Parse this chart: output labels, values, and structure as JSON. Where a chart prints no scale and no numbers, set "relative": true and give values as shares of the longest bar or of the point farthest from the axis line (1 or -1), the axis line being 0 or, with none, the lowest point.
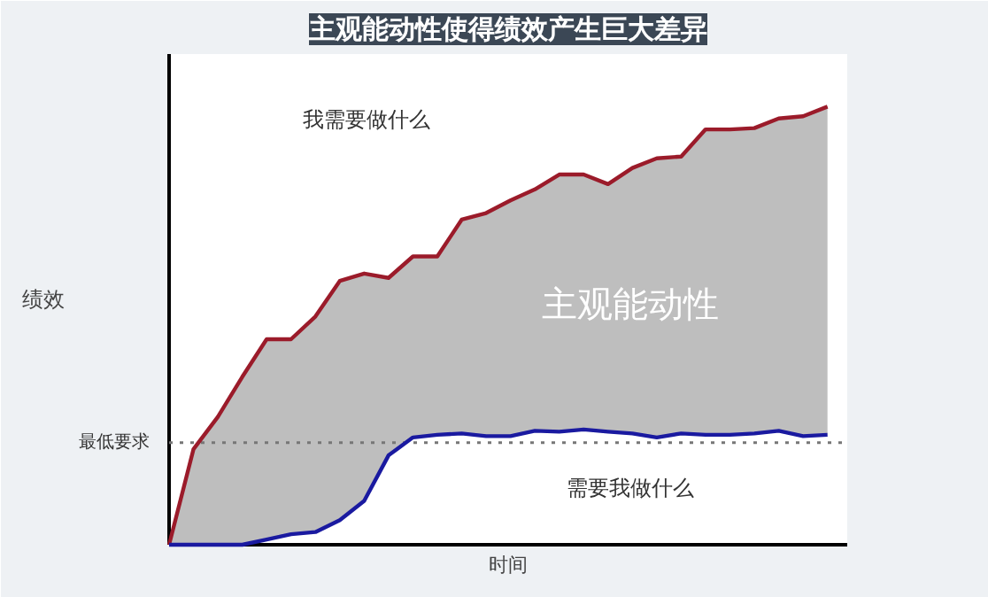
{
  "chart_data": {
    "type": "line",
    "title": "主观能动性使得绩效产生巨大差异",
    "xlabel": "时间",
    "ylabel": "绩效",
    "relative": true,
    "categories": [
      null,
      null,
      null,
      null,
      null,
      null,
      null,
      null,
      null,
      null,
      null,
      null,
      null,
      null,
      null,
      null,
      null,
      null,
      null,
      null,
      null,
      null,
      null,
      null,
      null,
      null,
      null,
      null
    ],
    "series": [
      {
        "color": "#9b1b2a",
        "values": [
          0,
          0.218,
          0.292,
          0.383,
          0.469,
          0.469,
          0.521,
          0.602,
          0.619,
          0.609,
          0.658,
          0.658,
          0.742,
          0.757,
          0.786,
          0.811,
          0.845,
          0.845,
          0.823,
          0.86,
          0.882,
          0.886,
          0.948,
          0.948,
          0.951,
          0.973,
          0.978,
          1.0
        ],
        "lower": [
          0,
          0,
          0,
          0,
          0.012,
          0.024,
          0.029,
          0.056,
          0.1,
          0.204,
          0.245,
          0.251,
          0.254,
          0.248,
          0.248,
          0.26,
          0.258,
          0.263,
          0.258,
          0.254,
          0.245,
          0.254,
          0.251,
          0.251,
          0.254,
          0.26,
          0.248,
          0.251
        ],
        "upper": [
          0,
          0.218,
          0.292,
          0.383,
          0.469,
          0.469,
          0.521,
          0.602,
          0.619,
          0.609,
          0.658,
          0.658,
          0.742,
          0.757,
          0.786,
          0.811,
          0.845,
          0.845,
          0.823,
          0.86,
          0.882,
          0.886,
          0.948,
          0.948,
          0.951,
          0.973,
          0.978,
          1.0
        ]
      },
      {
        "color": "#1a1aa0",
        "values": [
          0,
          0,
          0,
          0,
          0.012,
          0.024,
          0.029,
          0.056,
          0.1,
          0.204,
          0.245,
          0.251,
          0.254,
          0.248,
          0.248,
          0.26,
          0.258,
          0.263,
          0.258,
          0.254,
          0.245,
          0.254,
          0.251,
          0.251,
          0.254,
          0.26,
          0.248,
          0.251
        ]
      }
    ],
    "ref_lines": [
      {
        "axis": "y",
        "value": 0.233,
        "label": "最低要求",
        "color": "#777777",
        "line_style": "dotted"
      }
    ],
    "annotations": [
      "我需要做什么",
      "主观能动性",
      "需要我做什么"
    ],
    "grid": false,
    "marker": "none",
    "line_style": "solid"
  }
}
